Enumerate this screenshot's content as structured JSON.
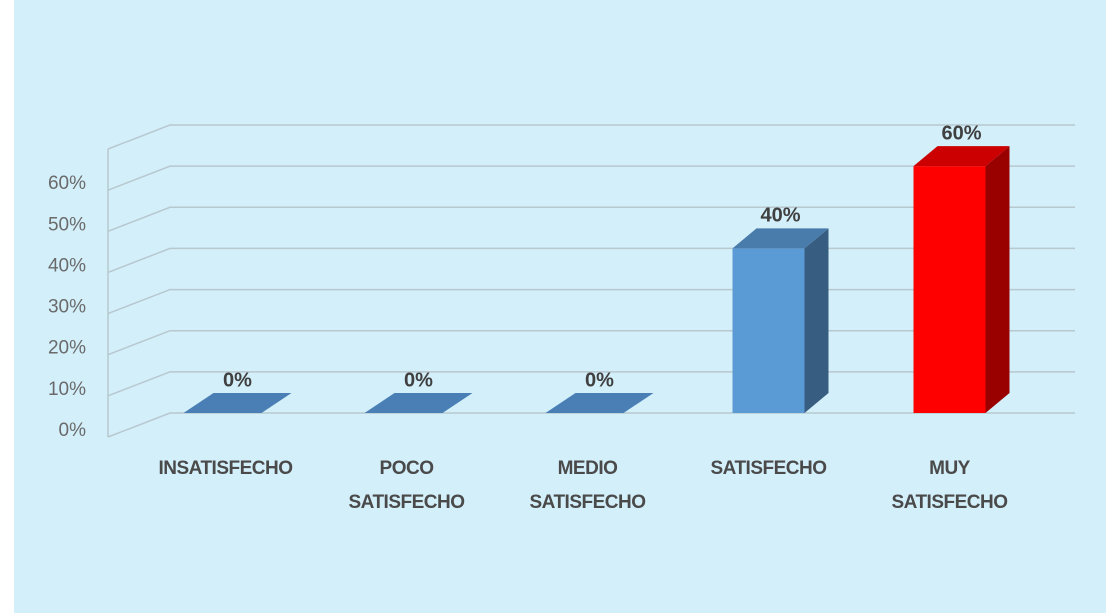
{
  "chart_data": {
    "type": "bar3d",
    "categories": [
      "INSATISFECHO",
      "POCO SATISFECHO",
      "MEDIO SATISFECHO",
      "SATISFECHO",
      "MUY SATISFECHO"
    ],
    "values": [
      0,
      0,
      0,
      40,
      60
    ],
    "value_labels": [
      "0%",
      "0%",
      "0%",
      "40%",
      "60%"
    ],
    "colors": [
      "#4a7fb5",
      "#4a7fb5",
      "#4a7fb5",
      "#5b9bd5",
      "#ff0000"
    ],
    "ylim": [
      0,
      70
    ],
    "yticks": [
      {
        "value": 0,
        "label": "0%"
      },
      {
        "value": 10,
        "label": "10%"
      },
      {
        "value": 20,
        "label": "20%"
      },
      {
        "value": 30,
        "label": "30%"
      },
      {
        "value": 40,
        "label": "40%"
      },
      {
        "value": 50,
        "label": "50%"
      },
      {
        "value": 60,
        "label": "60%"
      }
    ],
    "grid": true
  }
}
